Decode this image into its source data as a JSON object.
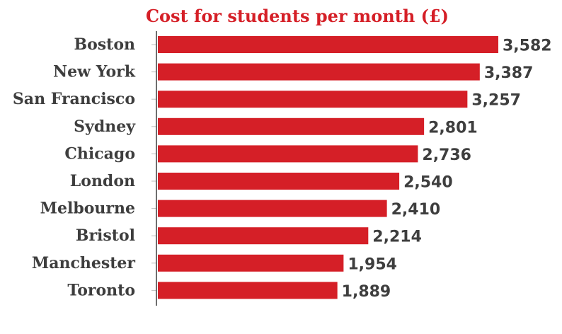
{
  "chart_data": {
    "type": "bar",
    "orientation": "horizontal",
    "title": "Cost for students per month (£)",
    "xlabel": "",
    "ylabel": "",
    "categories": [
      "Boston",
      "New York",
      "San Francisco",
      "Sydney",
      "Chicago",
      "London",
      "Melbourne",
      "Bristol",
      "Manchester",
      "Toronto"
    ],
    "values": [
      3582,
      3387,
      3257,
      2801,
      2736,
      2540,
      2410,
      2214,
      1954,
      1889
    ],
    "value_labels": [
      "3,582",
      "3,387",
      "3,257",
      "2,801",
      "2,736",
      "2,540",
      "2,410",
      "2,214",
      "1,954",
      "1,889"
    ],
    "xlim": [
      0,
      3582
    ],
    "grid": false,
    "legend": "none",
    "colors": {
      "bar": "#d51f27",
      "text": "#3e3e3e",
      "title": "#d51f27"
    }
  }
}
